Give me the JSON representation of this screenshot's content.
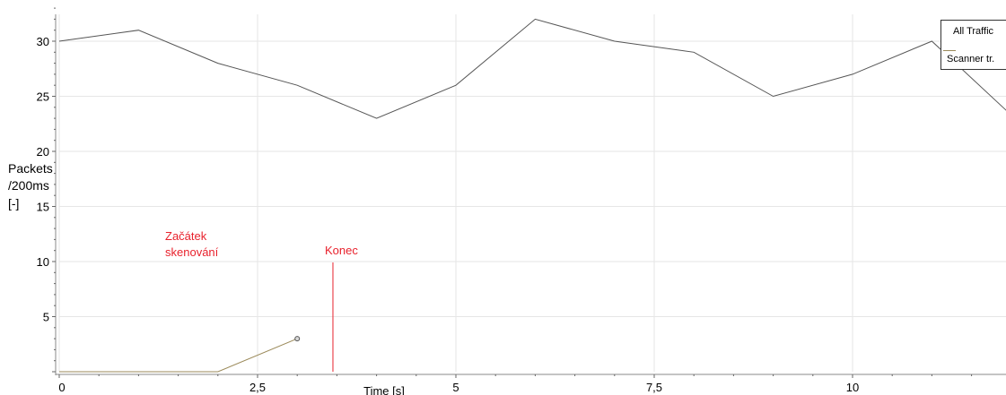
{
  "chart_data": {
    "type": "line",
    "xlabel": "Time [s]",
    "ylabel": [
      "Packets",
      "/200ms",
      "[-]"
    ],
    "x_ticks": [
      0,
      2.5,
      5,
      7.5,
      10
    ],
    "x_tick_labels": [
      "0",
      "2,5",
      "5",
      "7,5",
      "10"
    ],
    "y_ticks": [
      5,
      10,
      15,
      20,
      25,
      30
    ],
    "y_tick_labels": [
      "5",
      "10",
      "15",
      "20",
      "25",
      "30"
    ],
    "xlim": [
      0,
      12
    ],
    "ylim": [
      0,
      33
    ],
    "grid": true,
    "legend_position": "top-right",
    "series": [
      {
        "name": "All Traffic",
        "color": "#555555",
        "x": [
          0,
          1,
          2,
          3,
          4,
          5,
          6,
          7,
          8,
          9,
          10,
          11,
          12
        ],
        "y": [
          30,
          31,
          28,
          26,
          23,
          26,
          32,
          30,
          29,
          25,
          27,
          30,
          23.3
        ]
      },
      {
        "name": "Scanner tr.",
        "color": "#9b8a5a",
        "x": [
          0,
          1,
          2,
          3
        ],
        "y": [
          0,
          0,
          0,
          3
        ]
      }
    ],
    "annotations": [
      {
        "text_lines": [
          "Začátek",
          "skenování"
        ],
        "color": "#e8212c"
      },
      {
        "text_lines": [
          "Konec"
        ],
        "x": 3.45,
        "color": "#e8212c"
      }
    ]
  }
}
